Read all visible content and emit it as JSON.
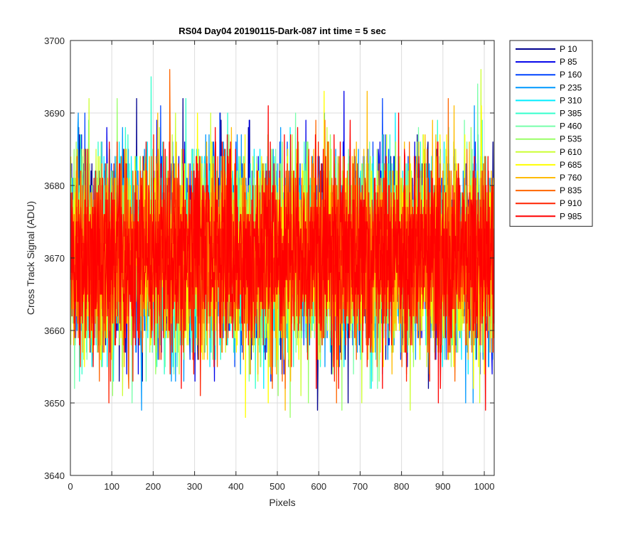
{
  "chart_data": {
    "type": "line",
    "title": "RS04 Day04 20190115-Dark-087 int time = 5 sec",
    "xlabel": "Pixels",
    "ylabel": "Cross Track Signal (ADU)",
    "xlim": [
      0,
      1024
    ],
    "ylim": [
      3640,
      3700
    ],
    "xticks": [
      0,
      100,
      200,
      300,
      400,
      500,
      600,
      700,
      800,
      900,
      1000
    ],
    "yticks": [
      3640,
      3650,
      3660,
      3670,
      3680,
      3690,
      3700
    ],
    "grid": true,
    "legend_position": "outside-top-right",
    "n_points": 1024,
    "series": [
      {
        "name": "P 10",
        "color": "#00008f",
        "mean": 3670.5,
        "range": [
          3642,
          3694
        ]
      },
      {
        "name": "P 85",
        "color": "#0000ea",
        "mean": 3670.5,
        "range": [
          3643,
          3694
        ]
      },
      {
        "name": "P 160",
        "color": "#0044ff",
        "mean": 3670.5,
        "range": [
          3647,
          3696
        ]
      },
      {
        "name": "P 235",
        "color": "#0099ff",
        "mean": 3670.5,
        "range": [
          3645,
          3696
        ]
      },
      {
        "name": "P 310",
        "color": "#00eeff",
        "mean": 3670.5,
        "range": [
          3646,
          3696
        ]
      },
      {
        "name": "P 385",
        "color": "#33ffcc",
        "mean": 3670.5,
        "range": [
          3649,
          3699
        ]
      },
      {
        "name": "P 460",
        "color": "#77ffaa",
        "mean": 3670.5,
        "range": [
          3650,
          3697
        ]
      },
      {
        "name": "P 535",
        "color": "#99ff66",
        "mean": 3670.5,
        "range": [
          3641,
          3697
        ]
      },
      {
        "name": "P 610",
        "color": "#ccff33",
        "mean": 3670.5,
        "range": [
          3647,
          3696
        ]
      },
      {
        "name": "P 685",
        "color": "#ffff00",
        "mean": 3670.5,
        "range": [
          3648,
          3695
        ]
      },
      {
        "name": "P 760",
        "color": "#ffbb00",
        "mean": 3670.5,
        "range": [
          3647,
          3696
        ]
      },
      {
        "name": "P 835",
        "color": "#ff6600",
        "mean": 3670.5,
        "range": [
          3645,
          3698
        ]
      },
      {
        "name": "P 910",
        "color": "#ff2200",
        "mean": 3670.5,
        "range": [
          3646,
          3696
        ]
      },
      {
        "name": "P 985",
        "color": "#ff0000",
        "mean": 3670.5,
        "range": [
          3647,
          3692
        ]
      }
    ]
  }
}
